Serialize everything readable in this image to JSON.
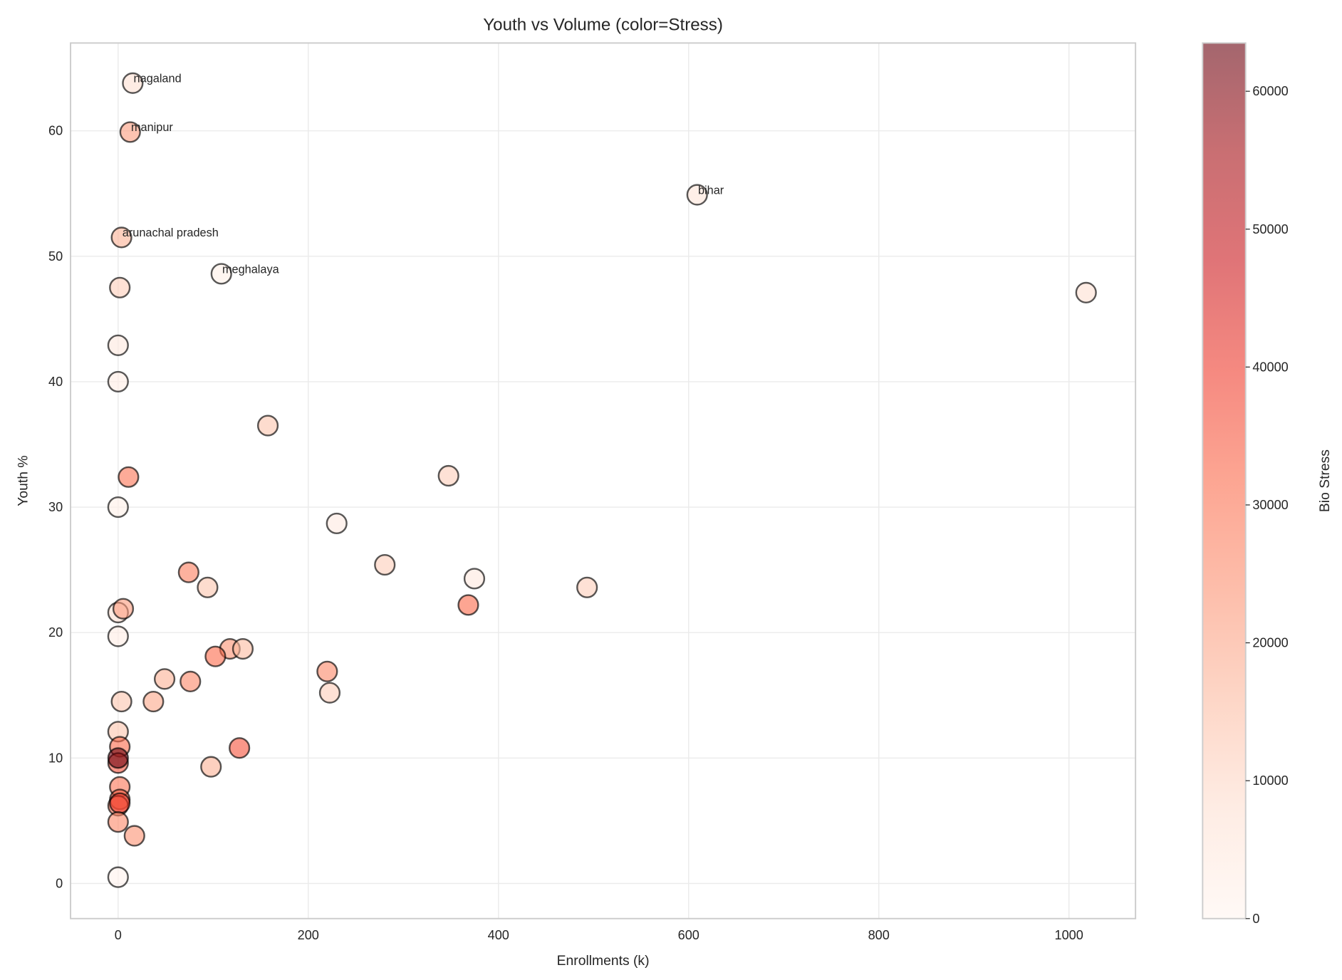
{
  "chart_data": {
    "type": "scatter",
    "title": "Youth vs Volume (color=Stress)",
    "xlabel": "Enrollments (k)",
    "ylabel": "Youth %",
    "xlim": [
      -50,
      1070
    ],
    "ylim": [
      -2.8,
      67
    ],
    "xticks": [
      0,
      200,
      400,
      600,
      800,
      1000
    ],
    "yticks": [
      0,
      10,
      20,
      30,
      40,
      50,
      60
    ],
    "grid": true,
    "colormap": "Reds",
    "marker_alpha": 0.6,
    "marker_edge_color": "#000000",
    "colorbar": {
      "label": "Bio Stress",
      "range": [
        0,
        63500
      ],
      "ticks": [
        0,
        10000,
        20000,
        30000,
        40000,
        50000,
        60000
      ]
    },
    "points": [
      {
        "x": 15.4,
        "y": 63.8,
        "c": 8000,
        "label": "nagaland"
      },
      {
        "x": 12.7,
        "y": 59.9,
        "c": 22000,
        "label": "manipur"
      },
      {
        "x": 609,
        "y": 54.9,
        "c": 6000,
        "label": "bihar"
      },
      {
        "x": 3.6,
        "y": 51.5,
        "c": 18000,
        "label": "arunachal pradesh"
      },
      {
        "x": 108.6,
        "y": 48.6,
        "c": 2000,
        "label": "meghalaya"
      },
      {
        "x": 1.8,
        "y": 47.5,
        "c": 12000
      },
      {
        "x": 1018,
        "y": 47.1,
        "c": 8000
      },
      {
        "x": 0,
        "y": 42.9,
        "c": 5000
      },
      {
        "x": 0,
        "y": 40.0,
        "c": 3000
      },
      {
        "x": 157.5,
        "y": 36.5,
        "c": 14000
      },
      {
        "x": 10.9,
        "y": 32.4,
        "c": 30000
      },
      {
        "x": 347.5,
        "y": 32.5,
        "c": 12000
      },
      {
        "x": 0,
        "y": 30.0,
        "c": 2000
      },
      {
        "x": 229.9,
        "y": 28.7,
        "c": 4000
      },
      {
        "x": 74.2,
        "y": 24.8,
        "c": 28000
      },
      {
        "x": 280.5,
        "y": 25.4,
        "c": 12000
      },
      {
        "x": 374.7,
        "y": 24.3,
        "c": 5000
      },
      {
        "x": 94.1,
        "y": 23.6,
        "c": 14000
      },
      {
        "x": 493.2,
        "y": 23.6,
        "c": 12000
      },
      {
        "x": 368.3,
        "y": 22.2,
        "c": 32000
      },
      {
        "x": 0,
        "y": 21.6,
        "c": 8000
      },
      {
        "x": 5.4,
        "y": 21.9,
        "c": 22000
      },
      {
        "x": 0,
        "y": 19.7,
        "c": 3000
      },
      {
        "x": 117.6,
        "y": 18.7,
        "c": 24000
      },
      {
        "x": 131.2,
        "y": 18.7,
        "c": 16000
      },
      {
        "x": 102.3,
        "y": 18.1,
        "c": 32000
      },
      {
        "x": 219.9,
        "y": 16.9,
        "c": 26000
      },
      {
        "x": 48.9,
        "y": 16.3,
        "c": 18000
      },
      {
        "x": 76.0,
        "y": 16.1,
        "c": 26000
      },
      {
        "x": 222.6,
        "y": 15.2,
        "c": 12000
      },
      {
        "x": 37.1,
        "y": 14.5,
        "c": 20000
      },
      {
        "x": 3.6,
        "y": 14.5,
        "c": 14000
      },
      {
        "x": 0,
        "y": 12.1,
        "c": 14000
      },
      {
        "x": 1.8,
        "y": 10.9,
        "c": 32000
      },
      {
        "x": 127.6,
        "y": 10.8,
        "c": 36000
      },
      {
        "x": 0,
        "y": 9.6,
        "c": 36000
      },
      {
        "x": 0,
        "y": 10.0,
        "c": 63000
      },
      {
        "x": 97.7,
        "y": 9.3,
        "c": 18000
      },
      {
        "x": 1.8,
        "y": 7.7,
        "c": 30000
      },
      {
        "x": 1.8,
        "y": 6.7,
        "c": 34000
      },
      {
        "x": 0,
        "y": 6.2,
        "c": 30000
      },
      {
        "x": 1.8,
        "y": 6.4,
        "c": 40000
      },
      {
        "x": 0,
        "y": 4.9,
        "c": 26000
      },
      {
        "x": 17.2,
        "y": 3.8,
        "c": 24000
      },
      {
        "x": 0,
        "y": 0.5,
        "c": 1000
      }
    ]
  }
}
